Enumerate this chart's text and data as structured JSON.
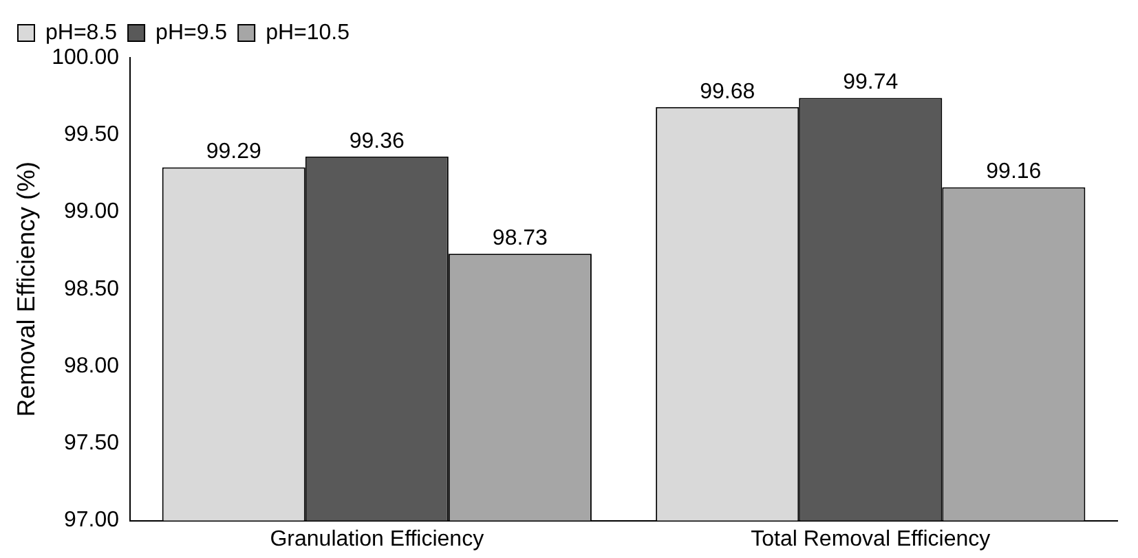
{
  "chart_data": {
    "type": "bar",
    "ylabel": "Removal Efficiency (%)",
    "categories": [
      "Granulation Efficiency",
      "Total Removal Efficiency"
    ],
    "series": [
      {
        "name": "pH=8.5",
        "color": "#d9d9d9",
        "values": [
          99.29,
          99.68
        ]
      },
      {
        "name": "pH=9.5",
        "color": "#595959",
        "values": [
          99.36,
          99.74
        ]
      },
      {
        "name": "pH=10.5",
        "color": "#a6a6a6",
        "values": [
          98.73,
          99.16
        ]
      }
    ],
    "ylim": [
      97,
      100
    ],
    "yticks": [
      {
        "value": 97,
        "label": "97.00"
      },
      {
        "value": 97.5,
        "label": "97.50"
      },
      {
        "value": 98,
        "label": "98.00"
      },
      {
        "value": 98.5,
        "label": "98.50"
      },
      {
        "value": 99,
        "label": "99.00"
      },
      {
        "value": 99.5,
        "label": "99.50"
      },
      {
        "value": 100,
        "label": "100.00"
      }
    ],
    "grid": false,
    "legend": "top left",
    "data_labels": true
  }
}
